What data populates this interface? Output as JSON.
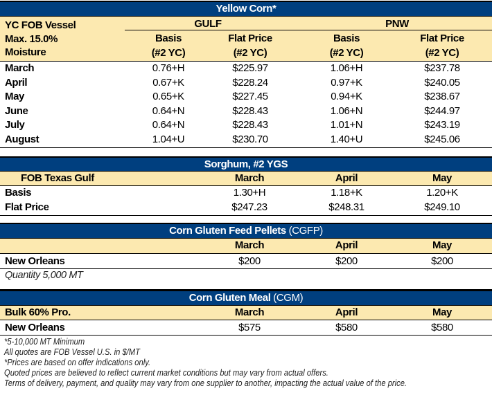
{
  "yellow_corn": {
    "title": "Yellow Corn*",
    "label_lines": [
      "YC FOB Vessel",
      "Max. 15.0%",
      "Moisture"
    ],
    "groups": [
      "GULF",
      "PNW"
    ],
    "col_headers": [
      "Basis",
      "Flat Price",
      "Basis",
      "Flat Price"
    ],
    "col_sub": "(#2 YC)",
    "rows": [
      {
        "month": "March",
        "gulf_basis": "0.76+H",
        "gulf_flat": "$225.97",
        "pnw_basis": "1.06+H",
        "pnw_flat": "$237.78"
      },
      {
        "month": "April",
        "gulf_basis": "0.67+K",
        "gulf_flat": "$228.24",
        "pnw_basis": "0.97+K",
        "pnw_flat": "$240.05"
      },
      {
        "month": "May",
        "gulf_basis": "0.65+K",
        "gulf_flat": "$227.45",
        "pnw_basis": "0.94+K",
        "pnw_flat": "$238.67"
      },
      {
        "month": "June",
        "gulf_basis": "0.64+N",
        "gulf_flat": "$228.43",
        "pnw_basis": "1.06+N",
        "pnw_flat": "$244.97"
      },
      {
        "month": "July",
        "gulf_basis": "0.64+N",
        "gulf_flat": "$228.43",
        "pnw_basis": "1.01+N",
        "pnw_flat": "$243.19"
      },
      {
        "month": "August",
        "gulf_basis": "1.04+U",
        "gulf_flat": "$230.70",
        "pnw_basis": "1.40+U",
        "pnw_flat": "$245.06"
      }
    ]
  },
  "sorghum": {
    "title": "Sorghum,  #2 YGS",
    "label": "FOB Texas Gulf",
    "months": [
      "March",
      "April",
      "May"
    ],
    "rows": [
      {
        "label": "Basis",
        "values": [
          "1.30+H",
          "1.18+K",
          "1.20+K"
        ]
      },
      {
        "label": "Flat Price",
        "values": [
          "$247.23",
          "$248.31",
          "$249.10"
        ]
      }
    ]
  },
  "cgfp": {
    "title_bold": "Corn Gluten Feed Pellets",
    "title_light": "(CGFP)",
    "months": [
      "March",
      "April",
      "May"
    ],
    "row": {
      "label": "New Orleans",
      "values": [
        "$200",
        "$200",
        "$200"
      ]
    },
    "note": "Quantity 5,000 MT"
  },
  "cgm": {
    "title_bold": "Corn Gluten Meal",
    "title_light": "(CGM)",
    "label": "Bulk 60% Pro.",
    "months": [
      "March",
      "April",
      "May"
    ],
    "row": {
      "label": "New Orleans",
      "values": [
        "$575",
        "$580",
        "$580"
      ]
    }
  },
  "footnotes": [
    "*5-10,000 MT Minimum",
    "All quotes are FOB Vessel U.S. in $/MT",
    "*Prices are based on offer indications only.",
    "Quoted prices are believed to reflect current market conditions but may vary from actual offers.",
    "Terms of delivery, payment, and quality may vary from one supplier to another, impacting the actual value of the price."
  ],
  "colors": {
    "header_bg": "#003f7f",
    "subheader_bg": "#fce9b0"
  }
}
